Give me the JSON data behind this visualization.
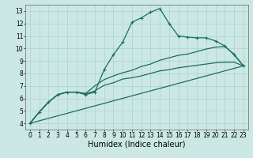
{
  "xlabel": "Humidex (Indice chaleur)",
  "background_color": "#cce8e4",
  "grid_color": "#aad4cc",
  "line_color": "#1a6e60",
  "xlim": [
    -0.5,
    23.5
  ],
  "ylim": [
    3.5,
    13.5
  ],
  "xticks": [
    0,
    1,
    2,
    3,
    4,
    5,
    6,
    7,
    8,
    9,
    10,
    11,
    12,
    13,
    14,
    15,
    16,
    17,
    18,
    19,
    20,
    21,
    22,
    23
  ],
  "yticks": [
    4,
    5,
    6,
    7,
    8,
    9,
    10,
    11,
    12,
    13
  ],
  "line1_x": [
    0,
    1,
    2,
    3,
    4,
    5,
    6,
    7,
    8,
    9,
    10,
    11,
    12,
    13,
    14,
    15,
    16,
    17,
    18,
    19,
    20,
    21,
    22,
    23
  ],
  "line1_y": [
    4.0,
    4.9,
    5.7,
    6.3,
    6.5,
    6.5,
    6.3,
    6.5,
    8.3,
    9.5,
    10.5,
    12.1,
    12.45,
    12.9,
    13.2,
    12.0,
    11.0,
    10.9,
    10.85,
    10.85,
    10.6,
    10.2,
    9.5,
    8.6
  ],
  "line2_x": [
    0,
    1,
    2,
    3,
    4,
    5,
    6,
    7,
    8,
    9,
    10,
    11,
    12,
    13,
    14,
    15,
    16,
    17,
    18,
    19,
    20,
    21,
    22,
    23
  ],
  "line2_y": [
    4.0,
    4.9,
    5.7,
    6.3,
    6.5,
    6.5,
    6.35,
    6.6,
    7.05,
    7.25,
    7.55,
    7.65,
    7.8,
    8.0,
    8.2,
    8.3,
    8.45,
    8.55,
    8.65,
    8.75,
    8.85,
    8.9,
    8.9,
    8.6
  ],
  "line3_x": [
    0,
    1,
    2,
    3,
    4,
    5,
    6,
    7,
    8,
    9,
    10,
    11,
    12,
    13,
    14,
    15,
    16,
    17,
    18,
    19,
    20,
    21,
    22,
    23
  ],
  "line3_y": [
    4.0,
    4.9,
    5.7,
    6.3,
    6.5,
    6.5,
    6.4,
    7.0,
    7.5,
    7.8,
    8.05,
    8.25,
    8.55,
    8.75,
    9.05,
    9.25,
    9.45,
    9.55,
    9.75,
    9.95,
    10.1,
    10.15,
    9.55,
    8.6
  ],
  "line4_x": [
    0,
    23
  ],
  "line4_y": [
    4.0,
    8.6
  ],
  "linewidth": 0.9,
  "markersize": 3.5,
  "axis_fontsize": 6.5,
  "tick_fontsize": 5.5,
  "xlabel_fontsize": 7
}
